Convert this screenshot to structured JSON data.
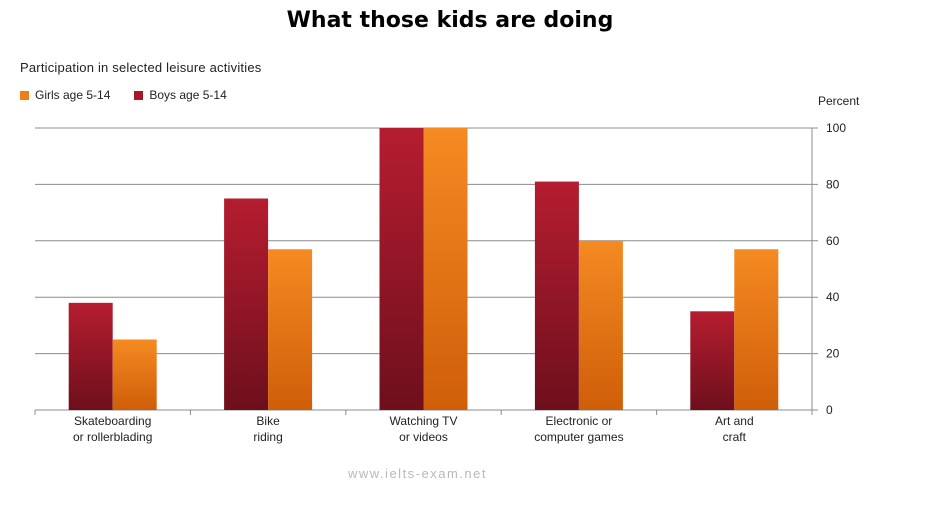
{
  "chart_data": {
    "type": "bar",
    "title": "What those kids are doing",
    "subtitle": "Participation in selected leisure activities",
    "ylabel": "Percent",
    "ylim": [
      0,
      100
    ],
    "yticks": [
      0,
      20,
      40,
      60,
      80,
      100
    ],
    "y_axis_side": "right",
    "grid": true,
    "legend_position": "top-left",
    "categories": [
      [
        "Skateboarding",
        "or rollerblading"
      ],
      [
        "Bike",
        "riding"
      ],
      [
        "Watching TV",
        "or videos"
      ],
      [
        "Electronic or",
        "computer games"
      ],
      [
        "Art and",
        "craft"
      ]
    ],
    "series": [
      {
        "name": "Boys age 5-14",
        "color": "#a5182a",
        "values": [
          38,
          75,
          100,
          81,
          35
        ]
      },
      {
        "name": "Girls age 5-14",
        "color": "#f07d1a",
        "values": [
          25,
          57,
          100,
          60,
          57
        ]
      }
    ]
  },
  "legend_order": [
    1,
    0
  ],
  "watermark": "www.ielts-exam.net"
}
